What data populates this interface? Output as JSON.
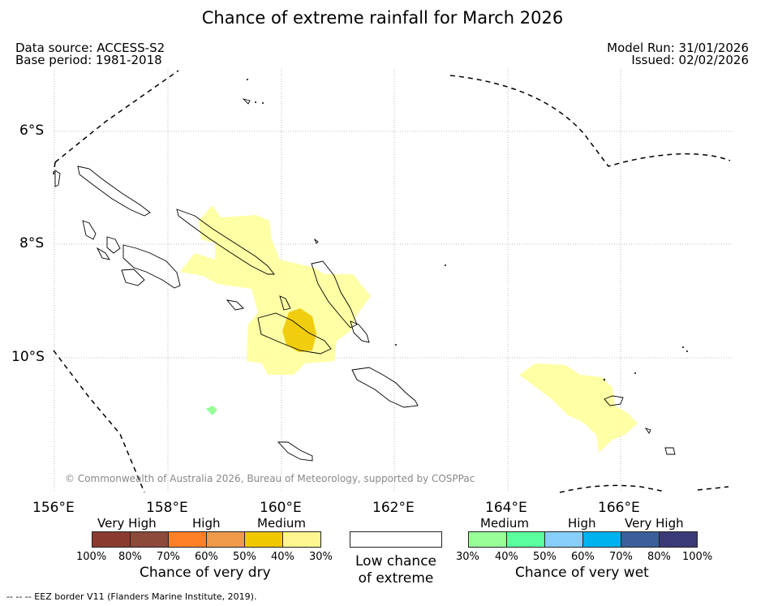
{
  "header": {
    "title": "Chance of extreme rainfall for March 2026",
    "data_source": "Data source: ACCESS-S2",
    "base_period": "Base period: 1981-2018",
    "model_run": "Model Run: 31/01/2026",
    "issued": "Issued: 02/02/2026"
  },
  "map": {
    "lat_labels": [
      "6°S",
      "8°S",
      "10°S"
    ],
    "lon_labels": [
      "156°E",
      "158°E",
      "160°E",
      "162°E",
      "164°E",
      "166°E"
    ],
    "copyright": "© Commonwealth of Australia 2026, Bureau of Meteorology, supported by COSPPac",
    "colors": {
      "medium_wet_30_40": "#ffff99",
      "high_wet_40_50": "#f0c800",
      "dry_medium_30_40": "#98ff98",
      "coastline": "#000000",
      "eez_border": "#000000"
    }
  },
  "legend": {
    "dry": {
      "categories": [
        "Very High",
        "High",
        "Medium"
      ],
      "percents": [
        "100%",
        "80%",
        "70%",
        "60%",
        "50%",
        "40%",
        "30%"
      ],
      "colors": [
        "#8b3a30",
        "#8b4a3a",
        "#ff7f27",
        "#ee9a48",
        "#f0c800",
        "#fff68f"
      ],
      "title": "Chance of very dry"
    },
    "low": {
      "line1": "Low chance",
      "line2": "of extreme"
    },
    "wet": {
      "categories": [
        "Medium",
        "High",
        "Very High"
      ],
      "percents": [
        "30%",
        "40%",
        "50%",
        "60%",
        "70%",
        "80%",
        "100%"
      ],
      "colors": [
        "#98ff98",
        "#5aff9e",
        "#87cefa",
        "#00b2ee",
        "#3a5f9a",
        "#3a3a78"
      ],
      "title": "Chance of very wet"
    }
  },
  "footer": {
    "eez_note": "--  --  -- EEZ border V11 (Flanders Marine Institute, 2019)."
  }
}
